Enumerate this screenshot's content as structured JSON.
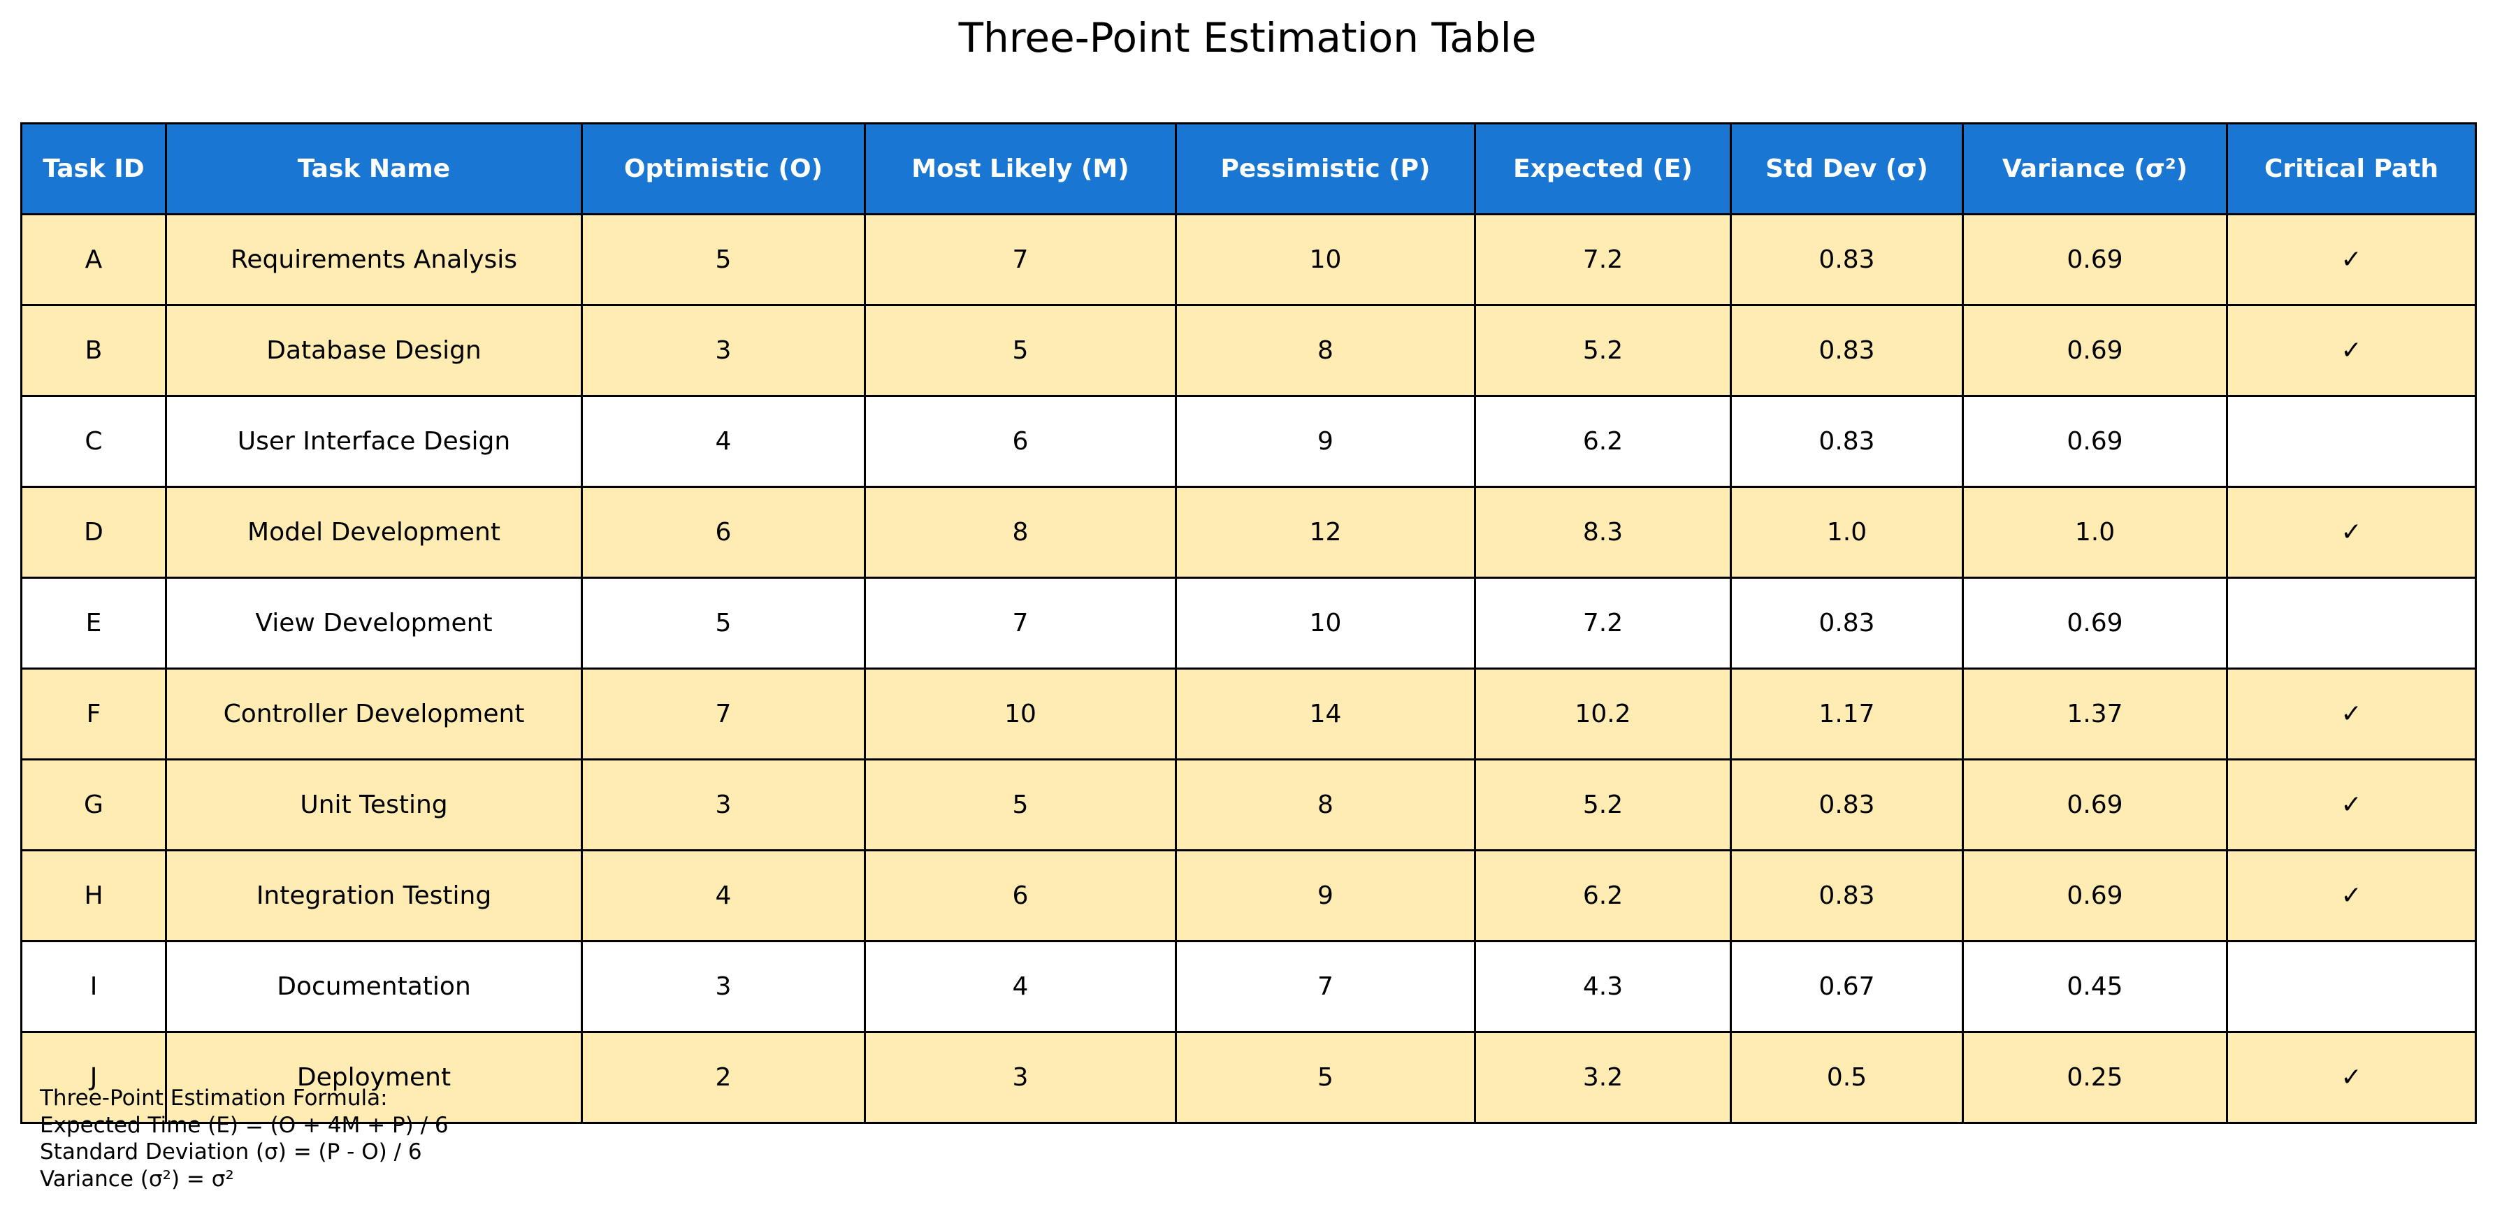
{
  "chart_data": {
    "type": "table",
    "title": "Three-Point Estimation Table",
    "columns": [
      "Task ID",
      "Task Name",
      "Optimistic (O)",
      "Most Likely (M)",
      "Pessimistic (P)",
      "Expected (E)",
      "Std Dev (σ)",
      "Variance (σ²)",
      "Critical Path"
    ],
    "rows": [
      {
        "task_id": "A",
        "task_name": "Requirements Analysis",
        "optimistic": "5",
        "most_likely": "7",
        "pessimistic": "10",
        "expected": "7.2",
        "std_dev": "0.83",
        "variance": "0.69",
        "critical": "✓"
      },
      {
        "task_id": "B",
        "task_name": "Database Design",
        "optimistic": "3",
        "most_likely": "5",
        "pessimistic": "8",
        "expected": "5.2",
        "std_dev": "0.83",
        "variance": "0.69",
        "critical": "✓"
      },
      {
        "task_id": "C",
        "task_name": "User Interface Design",
        "optimistic": "4",
        "most_likely": "6",
        "pessimistic": "9",
        "expected": "6.2",
        "std_dev": "0.83",
        "variance": "0.69",
        "critical": ""
      },
      {
        "task_id": "D",
        "task_name": "Model Development",
        "optimistic": "6",
        "most_likely": "8",
        "pessimistic": "12",
        "expected": "8.3",
        "std_dev": "1.0",
        "variance": "1.0",
        "critical": "✓"
      },
      {
        "task_id": "E",
        "task_name": "View Development",
        "optimistic": "5",
        "most_likely": "7",
        "pessimistic": "10",
        "expected": "7.2",
        "std_dev": "0.83",
        "variance": "0.69",
        "critical": ""
      },
      {
        "task_id": "F",
        "task_name": "Controller Development",
        "optimistic": "7",
        "most_likely": "10",
        "pessimistic": "14",
        "expected": "10.2",
        "std_dev": "1.17",
        "variance": "1.37",
        "critical": "✓"
      },
      {
        "task_id": "G",
        "task_name": "Unit Testing",
        "optimistic": "3",
        "most_likely": "5",
        "pessimistic": "8",
        "expected": "5.2",
        "std_dev": "0.83",
        "variance": "0.69",
        "critical": "✓"
      },
      {
        "task_id": "H",
        "task_name": "Integration Testing",
        "optimistic": "4",
        "most_likely": "6",
        "pessimistic": "9",
        "expected": "6.2",
        "std_dev": "0.83",
        "variance": "0.69",
        "critical": "✓"
      },
      {
        "task_id": "I",
        "task_name": "Documentation",
        "optimistic": "3",
        "most_likely": "4",
        "pessimistic": "7",
        "expected": "4.3",
        "std_dev": "0.67",
        "variance": "0.45",
        "critical": ""
      },
      {
        "task_id": "J",
        "task_name": "Deployment",
        "optimistic": "2",
        "most_likely": "3",
        "pessimistic": "5",
        "expected": "3.2",
        "std_dev": "0.5",
        "variance": "0.25",
        "critical": "✓"
      }
    ],
    "annotation": [
      "Three-Point Estimation Formula:",
      "Expected Time (E) = (O + 4M + P) / 6",
      "Standard Deviation (σ) = (P - O) / 6",
      "Variance (σ²) = σ²"
    ]
  },
  "colors": {
    "header_bg": "#1976d2",
    "critical_row_bg": "#ffecb3",
    "normal_row_bg": "#ffffff",
    "border": "#000000"
  }
}
